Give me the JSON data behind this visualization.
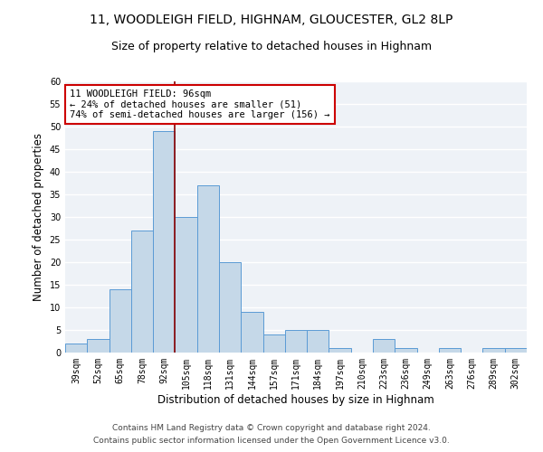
{
  "title": "11, WOODLEIGH FIELD, HIGHNAM, GLOUCESTER, GL2 8LP",
  "subtitle": "Size of property relative to detached houses in Highnam",
  "xlabel": "Distribution of detached houses by size in Highnam",
  "ylabel": "Number of detached properties",
  "categories": [
    "39sqm",
    "52sqm",
    "65sqm",
    "78sqm",
    "92sqm",
    "105sqm",
    "118sqm",
    "131sqm",
    "144sqm",
    "157sqm",
    "171sqm",
    "184sqm",
    "197sqm",
    "210sqm",
    "223sqm",
    "236sqm",
    "249sqm",
    "263sqm",
    "276sqm",
    "289sqm",
    "302sqm"
  ],
  "values": [
    2,
    3,
    14,
    27,
    49,
    30,
    37,
    20,
    9,
    4,
    5,
    5,
    1,
    0,
    3,
    1,
    0,
    1,
    0,
    1,
    1
  ],
  "bar_color": "#c5d8e8",
  "bar_edge_color": "#5b9bd5",
  "vline_color": "#8b0000",
  "annotation_text": "11 WOODLEIGH FIELD: 96sqm\n← 24% of detached houses are smaller (51)\n74% of semi-detached houses are larger (156) →",
  "annotation_box_color": "white",
  "annotation_box_edge_color": "#cc0000",
  "ylim": [
    0,
    60
  ],
  "yticks": [
    0,
    5,
    10,
    15,
    20,
    25,
    30,
    35,
    40,
    45,
    50,
    55,
    60
  ],
  "bg_color": "#eef2f7",
  "grid_color": "white",
  "footer1": "Contains HM Land Registry data © Crown copyright and database right 2024.",
  "footer2": "Contains public sector information licensed under the Open Government Licence v3.0.",
  "title_fontsize": 10,
  "subtitle_fontsize": 9,
  "label_fontsize": 8.5,
  "tick_fontsize": 7,
  "footer_fontsize": 6.5,
  "annot_fontsize": 7.5
}
